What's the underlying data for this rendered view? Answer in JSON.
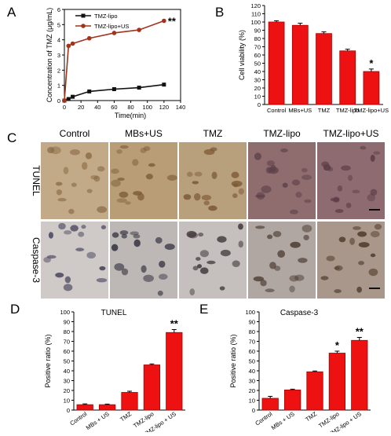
{
  "panels": {
    "a": {
      "letter": "A"
    },
    "b": {
      "letter": "B"
    },
    "c": {
      "letter": "C"
    },
    "d": {
      "letter": "D"
    },
    "e": {
      "letter": "E"
    }
  },
  "microscopy": {
    "columns": [
      "Control",
      "MBs+US",
      "TMZ",
      "TMZ-lipo",
      "TMZ-lipo+US"
    ],
    "rows": [
      "TUNEL",
      "Caspase-3"
    ]
  },
  "colors": {
    "bar_fill": "#ee1111",
    "bar_stroke": "#a80000",
    "lipo": "#111111",
    "lipo_us": "#a0341c"
  },
  "chart_data": [
    {
      "type": "line",
      "x": [
        0,
        5,
        10,
        30,
        60,
        90,
        120
      ],
      "series": [
        {
          "name": "TMZ-lipo",
          "values": [
            0,
            0.1,
            0.25,
            0.6,
            0.75,
            0.85,
            1.05
          ],
          "color": "#111111",
          "marker": "square"
        },
        {
          "name": "TMZ-lipo+US",
          "values": [
            0,
            3.6,
            3.75,
            4.1,
            4.45,
            4.65,
            5.25
          ],
          "color": "#a0341c",
          "marker": "circle"
        }
      ],
      "xlabel": "Time(min)",
      "ylabel": "Concentration of TMZ (μg/mL)",
      "xlim": [
        0,
        140
      ],
      "ylim": [
        0,
        6
      ],
      "xticks": [
        0,
        20,
        40,
        60,
        80,
        100,
        120,
        140
      ],
      "yticks": [
        0,
        1,
        2,
        3,
        4,
        5,
        6
      ],
      "annotations": [
        {
          "text": "**",
          "x": 120,
          "series": "TMZ-lipo+US"
        }
      ],
      "legend": "top-left"
    },
    {
      "type": "bar",
      "categories": [
        "Control",
        "MBs+US",
        "TMZ",
        "TMZ-lipo",
        "TMZ-lipo+US"
      ],
      "values": [
        100,
        96,
        86,
        65,
        40
      ],
      "errors": [
        1.5,
        2.5,
        2,
        2,
        3
      ],
      "significance": [
        "",
        "",
        "",
        "",
        "*"
      ],
      "ylabel": "Cell viability (%)",
      "ylim": [
        0,
        120
      ],
      "yticks": [
        0,
        10,
        20,
        30,
        40,
        50,
        60,
        70,
        80,
        90,
        100,
        110,
        120
      ]
    },
    {
      "type": "bar",
      "title": "TUNEL",
      "categories": [
        "Control",
        "MBs + US",
        "TMZ",
        "TMZ-lipo",
        "TMZ-lipo + US"
      ],
      "values": [
        5.5,
        5.5,
        18,
        46,
        79
      ],
      "errors": [
        0.8,
        0.6,
        1.2,
        1,
        3
      ],
      "significance": [
        "",
        "",
        "",
        "",
        "**"
      ],
      "ylabel": "Positive ratio (%)",
      "ylim": [
        0,
        100
      ],
      "yticks": [
        0,
        10,
        20,
        30,
        40,
        50,
        60,
        70,
        80,
        90,
        100
      ]
    },
    {
      "type": "bar",
      "title": "Caspase-3",
      "categories": [
        "Control",
        "MBs + US",
        "TMZ",
        "TMZ-lipo",
        "TMZ-lipo + US"
      ],
      "values": [
        12,
        20.5,
        39,
        58,
        71
      ],
      "errors": [
        2,
        0.8,
        0.8,
        2,
        3
      ],
      "significance": [
        "",
        "",
        "",
        "*",
        "**"
      ],
      "ylabel": "Positive ratio (%)",
      "ylim": [
        0,
        100
      ],
      "yticks": [
        0,
        10,
        20,
        30,
        40,
        50,
        60,
        70,
        80,
        90,
        100
      ]
    }
  ]
}
